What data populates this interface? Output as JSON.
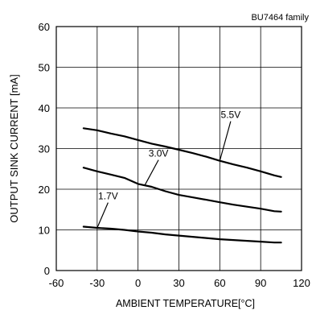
{
  "chart_data": {
    "type": "line",
    "title": "",
    "family_label": "BU7464 family",
    "xlabel": "AMBIENT TEMPERATURE[°C]",
    "ylabel": "OUTPUT SINK CURRENT [mA]",
    "xlim": [
      -60,
      120
    ],
    "ylim": [
      0,
      60
    ],
    "x_ticks": [
      "-60",
      "-30",
      "0",
      "30",
      "60",
      "90",
      "120"
    ],
    "y_ticks": [
      "0",
      "10",
      "20",
      "30",
      "40",
      "50",
      "60"
    ],
    "grid": true,
    "legend": "none",
    "series": [
      {
        "name": "5.5V",
        "x": [
          -40,
          -30,
          -20,
          -10,
          0,
          10,
          20,
          30,
          40,
          50,
          60,
          70,
          80,
          90,
          100,
          105
        ],
        "y": [
          35,
          34.5,
          33.7,
          33,
          32.1,
          31.2,
          30.5,
          29.7,
          28.9,
          28,
          27,
          26.1,
          25.3,
          24.4,
          23.4,
          23
        ]
      },
      {
        "name": "3.0V",
        "x": [
          -40,
          -30,
          -20,
          -10,
          0,
          10,
          20,
          30,
          40,
          50,
          60,
          70,
          80,
          90,
          100,
          105
        ],
        "y": [
          25.3,
          24.4,
          23.6,
          22.8,
          21.3,
          20.6,
          19.5,
          18.6,
          18,
          17.4,
          16.8,
          16.2,
          15.7,
          15.2,
          14.6,
          14.5
        ]
      },
      {
        "name": "1.7V",
        "x": [
          -40,
          -30,
          -20,
          -10,
          0,
          10,
          20,
          30,
          40,
          50,
          60,
          70,
          80,
          90,
          100,
          105
        ],
        "y": [
          10.8,
          10.5,
          10.3,
          10,
          9.6,
          9.3,
          8.9,
          8.6,
          8.3,
          8,
          7.7,
          7.5,
          7.3,
          7.1,
          6.9,
          6.9
        ]
      }
    ],
    "annotations": [
      {
        "text": "5.5V",
        "series": "5.5V",
        "label_at": [
          68,
          37.5
        ],
        "points_to": [
          60,
          27
        ]
      },
      {
        "text": "3.0V",
        "series": "3.0V",
        "label_at": [
          15,
          28
        ],
        "points_to": [
          5,
          21
        ]
      },
      {
        "text": "1.7V",
        "series": "1.7V",
        "label_at": [
          -22,
          17.5
        ],
        "points_to": [
          -30,
          10.5
        ]
      }
    ]
  }
}
